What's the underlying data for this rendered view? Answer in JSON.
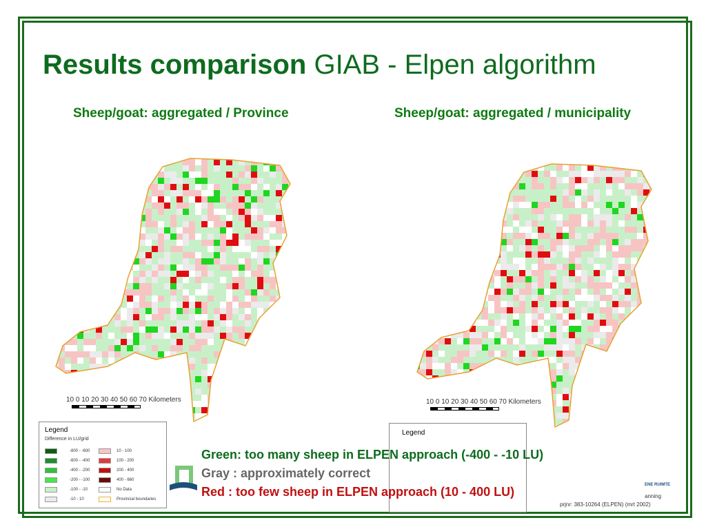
{
  "title": {
    "bold": "Results comparison",
    "normal": "GIAB - Elpen algorithm"
  },
  "left": {
    "subtitle": "Sheep/goat: aggregated / Province"
  },
  "right": {
    "subtitle": "Sheep/goat: aggregated / municipality"
  },
  "scale": {
    "label": "10  0  10 20 30 40 50 60 70  Kilometers"
  },
  "legend": {
    "title": "Legend",
    "subtitle": "Difference in LU/grid",
    "items_left": [
      {
        "label": "-800 - -600",
        "color": "#0b5e12"
      },
      {
        "label": "-600 - -400",
        "color": "#17922a"
      },
      {
        "label": "-400 - -200",
        "color": "#2bc43a"
      },
      {
        "label": "-200 - -100",
        "color": "#44e84c"
      },
      {
        "label": "-100 - -10",
        "color": "#c8f0c8"
      },
      {
        "label": "-10 - 10",
        "color": "#ebebeb"
      }
    ],
    "items_right": [
      {
        "label": "10 - 100",
        "color": "#f7c4c4"
      },
      {
        "label": "100 - 200",
        "color": "#e8383c"
      },
      {
        "label": "200 - 400",
        "color": "#c01010"
      },
      {
        "label": "400 - 660",
        "color": "#6a0a0a"
      },
      {
        "label": "No Data",
        "color": "#ffffff"
      },
      {
        "label": "Provincial boundaries",
        "color": "#f0b030"
      }
    ]
  },
  "legend_right": {
    "title": "Legend"
  },
  "notes": {
    "green": "Green: too many sheep in ELPEN approach (-400 -  -10 LU)",
    "gray": "Gray  : approximately correct",
    "red": "Red   : too few sheep in ELPEN approach (10 - 400 LU)"
  },
  "footer": {
    "right_top": "ENE RUIMTE",
    "right_mid": "anning",
    "right_bottom": "prjnr: 383-10264 (ELPEN)  (mrt 2002)"
  },
  "colors": {
    "accent": "#0e6b1e",
    "red_text": "#c01010",
    "gray_text": "#666666"
  }
}
